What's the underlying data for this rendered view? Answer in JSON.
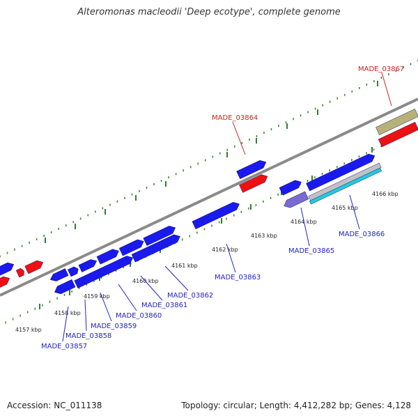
{
  "title": "Alteromonas macleodii 'Deep ecotype', complete genome",
  "footer": {
    "accession": "Accession: NC_011138",
    "stats": "Topology: circular; Length: 4,412,282 bp; Genes: 4,128"
  },
  "colors": {
    "backbone": "#8a8a8a",
    "minor_tick": "#3a8a3a",
    "major_tick": "#2e7d2e",
    "label_blue": "#2222cc",
    "label_red": "#cc2222",
    "gene_blue": "#1a1aee",
    "gene_red": "#ee1111",
    "gene_purple": "#7a6ad0",
    "gene_cyan": "#22ccdd",
    "gene_olive": "#b8b27a",
    "gene_silver": "#c0c0c8"
  },
  "scale": {
    "ticks": [
      {
        "label": "4157 kbp"
      },
      {
        "label": "4158 kbp"
      },
      {
        "label": "4159 kbp"
      },
      {
        "label": "4160 kbp"
      },
      {
        "label": "4161 kbp"
      },
      {
        "label": "4162 kbp"
      },
      {
        "label": "4163 kbp"
      },
      {
        "label": "4164 kbp"
      },
      {
        "label": "4165 kbp"
      },
      {
        "label": "4166 kbp"
      }
    ]
  },
  "gene_labels": [
    {
      "text": "MADE_03857",
      "color": "blue"
    },
    {
      "text": "MADE_03858",
      "color": "blue"
    },
    {
      "text": "MADE_03859",
      "color": "blue"
    },
    {
      "text": "MADE_03860",
      "color": "blue"
    },
    {
      "text": "MADE_03861",
      "color": "blue"
    },
    {
      "text": "MADE_03862",
      "color": "blue"
    },
    {
      "text": "MADE_03863",
      "color": "blue"
    },
    {
      "text": "MADE_03864",
      "color": "red"
    },
    {
      "text": "MADE_03865",
      "color": "blue"
    },
    {
      "text": "MADE_03866",
      "color": "blue"
    },
    {
      "text": "MADE_03867",
      "color": "red"
    }
  ]
}
